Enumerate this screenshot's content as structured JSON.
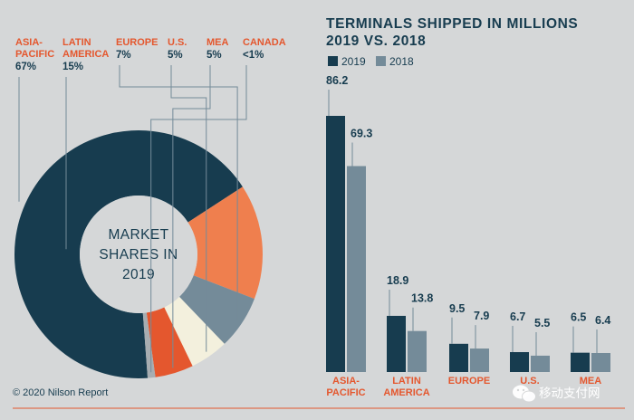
{
  "colors": {
    "background": "#d5d7d8",
    "navy": "#173c4f",
    "steel": "#748b99",
    "orange": "#e4572e",
    "latam_orange": "#ef7f4e",
    "cream": "#f3f0dd",
    "light_gray": "#a7adb1",
    "center": "#d5d7d8"
  },
  "chart_data": [
    {
      "type": "pie",
      "variant": "donut",
      "center_text": [
        "MARKET",
        "SHARES IN",
        "2019"
      ],
      "slices": [
        {
          "region": [
            "ASIA-",
            "PACIFIC"
          ],
          "value_label": "67%",
          "value": 67,
          "color": "#173c4f"
        },
        {
          "region": [
            "LATIN",
            "AMERICA"
          ],
          "value_label": "15%",
          "value": 15,
          "color": "#ef7f4e"
        },
        {
          "region": [
            "EUROPE"
          ],
          "value_label": "7%",
          "value": 7,
          "color": "#748b99"
        },
        {
          "region": [
            "U.S."
          ],
          "value_label": "5%",
          "value": 5,
          "color": "#f3f0dd"
        },
        {
          "region": [
            "MEA"
          ],
          "value_label": "5%",
          "value": 5,
          "color": "#e4572e"
        },
        {
          "region": [
            "CANADA"
          ],
          "value_label": "<1%",
          "value": 1,
          "color": "#a7adb1"
        }
      ]
    },
    {
      "type": "bar",
      "title": [
        "TERMINALS SHIPPED IN MILLIONS",
        "2019 VS. 2018"
      ],
      "legend_position": "top-left",
      "categories": [
        [
          "ASIA-",
          "PACIFIC"
        ],
        [
          "LATIN",
          "AMERICA"
        ],
        [
          "EUROPE"
        ],
        [
          "U.S."
        ],
        [
          "MEA"
        ]
      ],
      "series": [
        {
          "name": "2019",
          "values": [
            86.2,
            18.9,
            9.5,
            6.7,
            6.5
          ],
          "color": "#173c4f"
        },
        {
          "name": "2018",
          "values": [
            69.3,
            13.8,
            7.9,
            5.5,
            6.4
          ],
          "color": "#748b99"
        }
      ],
      "ylim": [
        0,
        86.2
      ]
    }
  ],
  "footer": {
    "copyright": "© 2020 Nilson Report",
    "watermark": "移动支付网"
  }
}
